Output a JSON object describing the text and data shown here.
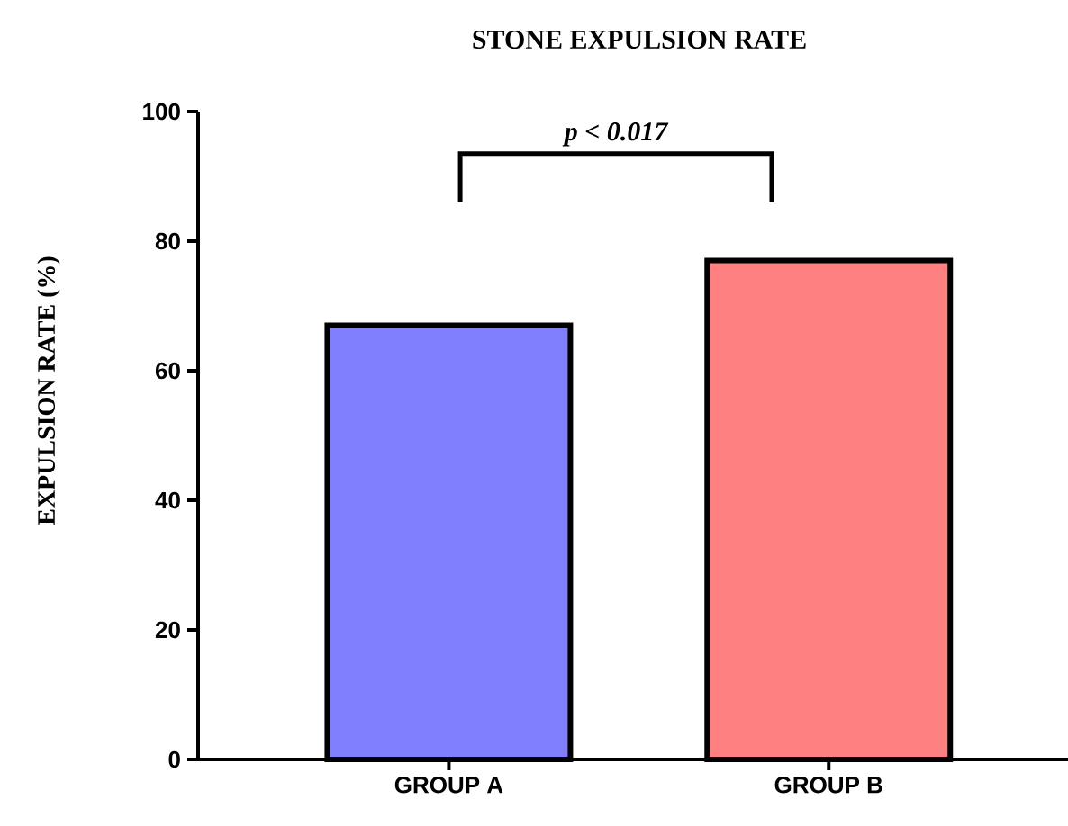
{
  "chart_data": {
    "type": "bar",
    "title": "STONE EXPULSION RATE",
    "ylabel": "EXPULSION RATE (%)",
    "categories": [
      "GROUP A",
      "GROUP B"
    ],
    "values": [
      67,
      77
    ],
    "colors": [
      "#8080ff",
      "#ff8080"
    ],
    "ylim": [
      0,
      100
    ],
    "yticks": [
      0,
      20,
      40,
      60,
      80,
      100
    ],
    "annotations": [
      "p < 0.017"
    ]
  }
}
